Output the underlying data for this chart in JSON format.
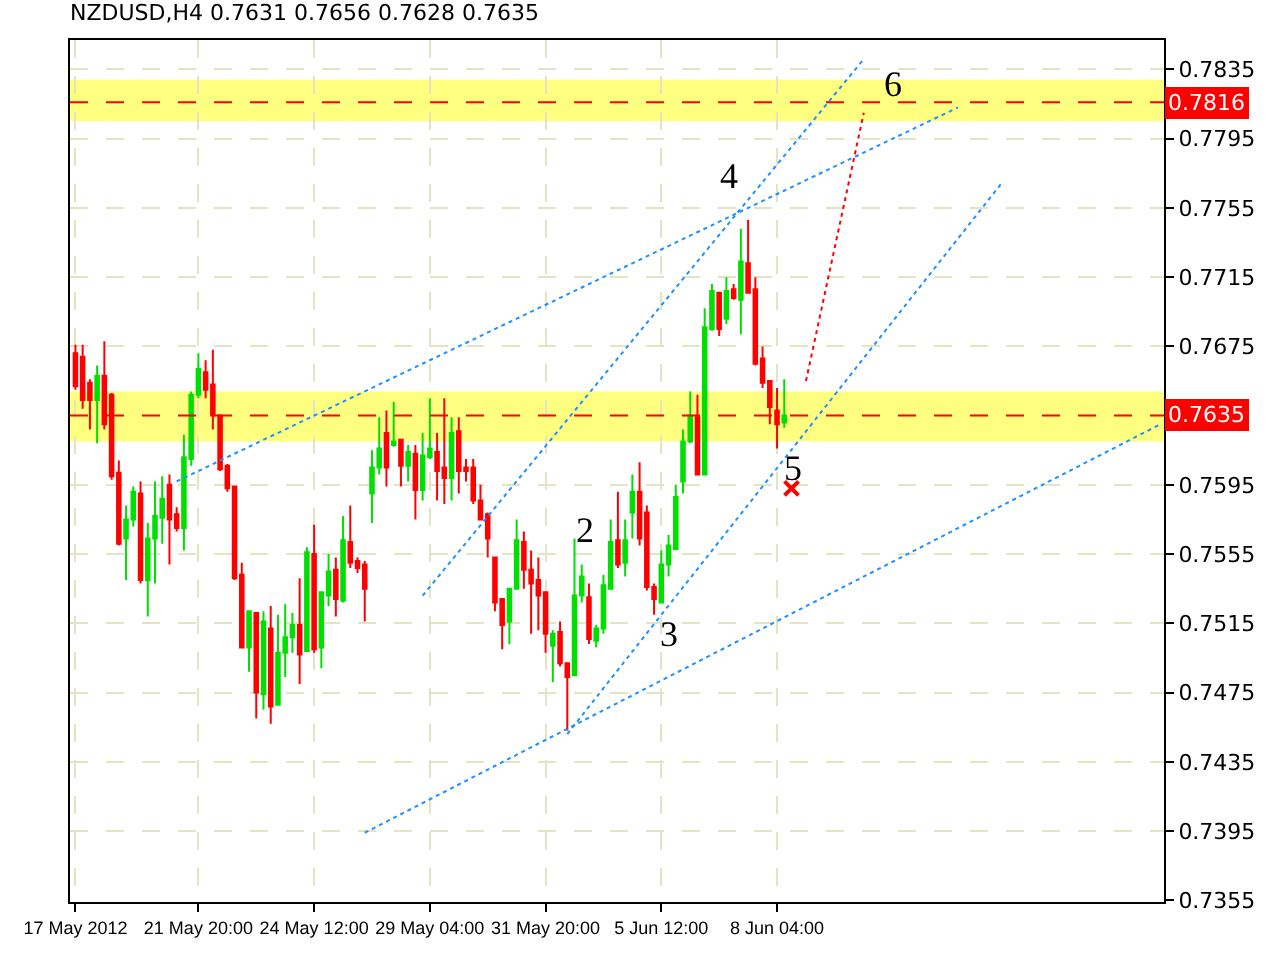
{
  "chart_data": {
    "type": "candlestick",
    "title": "NZDUSD,H4 0.7631 0.7656 0.7628 0.7635",
    "categories": [
      "17 May 2012",
      null,
      null,
      null,
      null,
      null,
      null,
      null,
      null,
      null,
      null,
      null,
      null,
      null,
      null,
      null,
      null,
      "21 May 20:00",
      null,
      null,
      null,
      null,
      null,
      null,
      null,
      null,
      null,
      null,
      null,
      null,
      null,
      null,
      null,
      "24 May 12:00",
      null,
      null,
      null,
      null,
      null,
      null,
      null,
      null,
      null,
      null,
      null,
      null,
      null,
      null,
      null,
      "29 May 04:00",
      null,
      null,
      null,
      null,
      null,
      null,
      null,
      null,
      null,
      null,
      null,
      null,
      null,
      null,
      null,
      "31 May 20:00",
      null,
      null,
      null,
      null,
      null,
      null,
      null,
      null,
      null,
      null,
      null,
      null,
      null,
      null,
      null,
      "5 Jun 12:00",
      null,
      null,
      null,
      null,
      null,
      null,
      null,
      null,
      null,
      null,
      null,
      null,
      null,
      null,
      null,
      "8 Jun 04:00",
      null,
      null,
      null,
      null,
      null,
      null,
      null,
      null,
      null,
      null,
      null,
      null,
      null,
      null,
      null,
      null,
      null,
      null,
      null,
      null,
      null,
      null,
      null,
      null,
      null,
      null,
      null,
      null,
      null,
      null,
      null,
      null,
      null,
      null,
      null,
      null,
      null,
      null,
      null,
      null,
      null,
      null,
      null,
      null,
      null,
      null,
      null,
      null,
      null,
      null,
      null,
      null,
      null
    ],
    "ohlc": [
      [
        0.7671,
        0.7676,
        0.765,
        0.7652
      ],
      [
        0.7669,
        0.7676,
        0.7639,
        0.7644
      ],
      [
        0.7654,
        0.7656,
        0.7627,
        0.7644
      ],
      [
        0.7644,
        0.7664,
        0.7619,
        0.7658
      ],
      [
        0.7658,
        0.7678,
        0.7627,
        0.763
      ],
      [
        0.7647,
        0.7648,
        0.7598,
        0.76
      ],
      [
        0.7602,
        0.7609,
        0.756,
        0.7561
      ],
      [
        0.7564,
        0.7583,
        0.754,
        0.7575
      ],
      [
        0.7575,
        0.7594,
        0.7571,
        0.7591
      ],
      [
        0.759,
        0.7597,
        0.7538,
        0.754
      ],
      [
        0.754,
        0.7573,
        0.7519,
        0.7564
      ],
      [
        0.7564,
        0.7597,
        0.7538,
        0.7577
      ],
      [
        0.7576,
        0.76,
        0.7561,
        0.7587
      ],
      [
        0.7595,
        0.7601,
        0.7549,
        0.7575
      ],
      [
        0.7578,
        0.7582,
        0.7568,
        0.757
      ],
      [
        0.757,
        0.7624,
        0.7557,
        0.7611
      ],
      [
        0.761,
        0.7649,
        0.7606,
        0.7647
      ],
      [
        0.7647,
        0.7671,
        0.7645,
        0.7662
      ],
      [
        0.766,
        0.7667,
        0.7645,
        0.765
      ],
      [
        0.7653,
        0.7673,
        0.7627,
        0.7635
      ],
      [
        0.7635,
        0.7635,
        0.7603,
        0.7604
      ],
      [
        0.7606,
        0.7607,
        0.7591,
        0.7593
      ],
      [
        0.7594,
        0.7594,
        0.754,
        0.7541
      ],
      [
        0.7543,
        0.755,
        0.7501,
        0.7501
      ],
      [
        0.7501,
        0.7522,
        0.7487,
        0.7522
      ],
      [
        0.7521,
        0.7521,
        0.746,
        0.7475
      ],
      [
        0.7474,
        0.7522,
        0.7465,
        0.7516
      ],
      [
        0.7512,
        0.7525,
        0.7457,
        0.7467
      ],
      [
        0.7468,
        0.752,
        0.7468,
        0.7498
      ],
      [
        0.7498,
        0.7526,
        0.7484,
        0.7507
      ],
      [
        0.7507,
        0.7521,
        0.7498,
        0.7514
      ],
      [
        0.7514,
        0.7541,
        0.748,
        0.7497
      ],
      [
        0.7499,
        0.7559,
        0.7499,
        0.7556
      ],
      [
        0.7555,
        0.7572,
        0.7498,
        0.75
      ],
      [
        0.7501,
        0.7533,
        0.7489,
        0.7533
      ],
      [
        0.7531,
        0.7555,
        0.7525,
        0.7545
      ],
      [
        0.7546,
        0.7553,
        0.7519,
        0.7529
      ],
      [
        0.7528,
        0.7577,
        0.7527,
        0.7563
      ],
      [
        0.7562,
        0.7583,
        0.7547,
        0.755
      ],
      [
        0.7551,
        0.7553,
        0.7544,
        0.7547
      ],
      [
        0.7549,
        0.7551,
        0.7516,
        0.7535
      ],
      [
        0.759,
        0.7615,
        0.7573,
        0.7605
      ],
      [
        0.7605,
        0.7634,
        0.7601,
        0.7616
      ],
      [
        0.7625,
        0.7638,
        0.7594,
        0.7605
      ],
      [
        0.7618,
        0.7643,
        0.7617,
        0.762
      ],
      [
        0.7621,
        0.7621,
        0.7594,
        0.7606
      ],
      [
        0.7606,
        0.7618,
        0.7597,
        0.7614
      ],
      [
        0.7613,
        0.7618,
        0.7575,
        0.7592
      ],
      [
        0.7592,
        0.7625,
        0.7586,
        0.7612
      ],
      [
        0.7611,
        0.7645,
        0.761,
        0.7616
      ],
      [
        0.7614,
        0.7625,
        0.7586,
        0.7603
      ],
      [
        0.7605,
        0.7645,
        0.7584,
        0.7599
      ],
      [
        0.7599,
        0.7634,
        0.7586,
        0.7625
      ],
      [
        0.7626,
        0.7634,
        0.759,
        0.7603
      ],
      [
        0.7605,
        0.761,
        0.7597,
        0.7603
      ],
      [
        0.7605,
        0.761,
        0.7584,
        0.7586
      ],
      [
        0.7586,
        0.7595,
        0.7575,
        0.7575
      ],
      [
        0.7578,
        0.7579,
        0.7553,
        0.7564
      ],
      [
        0.7553,
        0.7553,
        0.7522,
        0.7527
      ],
      [
        0.7529,
        0.7529,
        0.75,
        0.7514
      ],
      [
        0.7516,
        0.7535,
        0.7503,
        0.7535
      ],
      [
        0.7535,
        0.7575,
        0.7535,
        0.7563
      ],
      [
        0.7562,
        0.7568,
        0.7535,
        0.7546
      ],
      [
        0.7546,
        0.7557,
        0.7509,
        0.7538
      ],
      [
        0.754,
        0.7553,
        0.7511,
        0.7531
      ],
      [
        0.7533,
        0.7533,
        0.7498,
        0.7509
      ],
      [
        0.7502,
        0.7511,
        0.7481,
        0.7509
      ],
      [
        0.751,
        0.7516,
        0.749,
        0.7492
      ],
      [
        0.7492,
        0.7492,
        0.7453,
        0.7484
      ],
      [
        0.7485,
        0.7564,
        0.7485,
        0.7531
      ],
      [
        0.7531,
        0.7549,
        0.7527,
        0.7542
      ],
      [
        0.753,
        0.7538,
        0.7503,
        0.7506
      ],
      [
        0.7505,
        0.7514,
        0.7501,
        0.7512
      ],
      [
        0.7512,
        0.7543,
        0.7509,
        0.7537
      ],
      [
        0.7535,
        0.7575,
        0.7535,
        0.7562
      ],
      [
        0.7563,
        0.7591,
        0.7547,
        0.7549
      ],
      [
        0.755,
        0.7575,
        0.7542,
        0.7563
      ],
      [
        0.7579,
        0.7601,
        0.7564,
        0.7591
      ],
      [
        0.7591,
        0.7608,
        0.756,
        0.7564
      ],
      [
        0.7579,
        0.7583,
        0.7534,
        0.7536
      ],
      [
        0.7536,
        0.7538,
        0.752,
        0.7529
      ],
      [
        0.7527,
        0.7557,
        0.7527,
        0.7549
      ],
      [
        0.7549,
        0.7566,
        0.7542,
        0.756
      ],
      [
        0.7558,
        0.7595,
        0.7558,
        0.7588
      ],
      [
        0.7597,
        0.7627,
        0.759,
        0.762
      ],
      [
        0.762,
        0.7649,
        0.7619,
        0.7635
      ],
      [
        0.7634,
        0.7647,
        0.7601,
        0.7601
      ],
      [
        0.7601,
        0.7697,
        0.7601,
        0.7686
      ],
      [
        0.7685,
        0.7711,
        0.7684,
        0.7707
      ],
      [
        0.7706,
        0.7706,
        0.7681,
        0.7685
      ],
      [
        0.7691,
        0.7715,
        0.7688,
        0.7707
      ],
      [
        0.7708,
        0.7711,
        0.7702,
        0.7703
      ],
      [
        0.7702,
        0.7743,
        0.7682,
        0.7724
      ],
      [
        0.7723,
        0.7748,
        0.7706,
        0.7706
      ],
      [
        0.7708,
        0.7715,
        0.7664,
        0.7665
      ],
      [
        0.7668,
        0.7675,
        0.7651,
        0.7654
      ],
      [
        0.7655,
        0.7655,
        0.763,
        0.764
      ],
      [
        0.7638,
        0.7651,
        0.7616,
        0.763
      ],
      [
        0.7631,
        0.7656,
        0.7628,
        0.7635
      ],
      null,
      null,
      null,
      null,
      null,
      null,
      null,
      null,
      null,
      null,
      null,
      null,
      null,
      null,
      null,
      null,
      null,
      null,
      null,
      null,
      null,
      null,
      null,
      null,
      null,
      null,
      null,
      null,
      null,
      null,
      null,
      null,
      null,
      null,
      null,
      null,
      null,
      null,
      null,
      null,
      null,
      null,
      null,
      null,
      null,
      null,
      null,
      null,
      null,
      null,
      null,
      null
    ],
    "colors": [
      "#ff0000",
      "#ff0000",
      "#ff0000",
      "#00e000",
      "#ff0000",
      "#ff0000",
      "#ff0000",
      "#00e000",
      "#00e000",
      "#ff0000",
      "#00e000",
      "#00e000",
      "#00e000",
      "#ff0000",
      "#ff0000",
      "#00e000",
      "#00e000",
      "#00e000",
      "#ff0000",
      "#ff0000",
      "#ff0000",
      "#ff0000",
      "#ff0000",
      "#ff0000",
      "#00e000",
      "#ff0000",
      "#00e000",
      "#ff0000",
      "#00e000",
      "#00e000",
      "#00e000",
      "#ff0000",
      "#00e000",
      "#ff0000",
      "#00e000",
      "#00e000",
      "#ff0000",
      "#00e000",
      "#ff0000",
      "#ff0000",
      "#ff0000",
      "#00e000",
      "#00e000",
      "#ff0000",
      "#00e000",
      "#ff0000",
      "#00e000",
      "#ff0000",
      "#00e000",
      "#00e000",
      "#ff0000",
      "#ff0000",
      "#00e000",
      "#ff0000",
      "#ff0000",
      "#ff0000",
      "#ff0000",
      "#ff0000",
      "#ff0000",
      "#ff0000",
      "#00e000",
      "#00e000",
      "#ff0000",
      "#ff0000",
      "#ff0000",
      "#ff0000",
      "#00e000",
      "#ff0000",
      "#ff0000",
      "#00e000",
      "#00e000",
      "#ff0000",
      "#00e000",
      "#00e000",
      "#00e000",
      "#ff0000",
      "#00e000",
      "#00e000",
      "#ff0000",
      "#ff0000",
      "#ff0000",
      "#00e000",
      "#00e000",
      "#00e000",
      "#00e000",
      "#00e000",
      "#ff0000",
      "#00e000",
      "#00e000",
      "#ff0000",
      "#00e000",
      "#ff0000",
      "#00e000",
      "#ff0000",
      "#ff0000",
      "#ff0000",
      "#ff0000",
      "#ff0000",
      "#00e000",
      null,
      null,
      null,
      null,
      null,
      null,
      null,
      null,
      null,
      null,
      null,
      null,
      null,
      null,
      null,
      null,
      null,
      null,
      null,
      null,
      null,
      null,
      null,
      null,
      null,
      null,
      null,
      null,
      null,
      null,
      null,
      null,
      null,
      null,
      null,
      null,
      null,
      null,
      null,
      null,
      null,
      null,
      null,
      null,
      null,
      null,
      null,
      null,
      null,
      null,
      null,
      null
    ],
    "series": [
      {
        "type": "line",
        "color": "#1e90ff",
        "line_style": "dotted",
        "values": [
          null,
          null,
          null,
          null,
          null,
          null,
          null,
          null,
          null,
          null,
          null,
          null,
          null,
          null,
          null,
          null,
          null,
          null,
          null,
          null,
          null,
          null,
          null,
          null,
          null,
          null,
          null,
          null,
          null,
          null,
          null,
          null,
          null,
          null,
          null,
          null,
          null,
          null,
          null,
          null,
          0.7394,
          null,
          null,
          null,
          null,
          null,
          null,
          null,
          null,
          null,
          null,
          null,
          null,
          null,
          null,
          null,
          null,
          null,
          null,
          null,
          null,
          null,
          null,
          null,
          null,
          null,
          null,
          null,
          null,
          null,
          null,
          null,
          null,
          null,
          null,
          null,
          null,
          null,
          null,
          null,
          null,
          null,
          null,
          null,
          null,
          null,
          null,
          null,
          null,
          null,
          null,
          null,
          null,
          null,
          null,
          null,
          null,
          null,
          null,
          null,
          null,
          null,
          null,
          null,
          null,
          null,
          null,
          null,
          null,
          null,
          null,
          null,
          null,
          null,
          null,
          null,
          null,
          null,
          null,
          null,
          null,
          null,
          null,
          null,
          null,
          null,
          null,
          null,
          null,
          null,
          null,
          null,
          null,
          null,
          null,
          null,
          null,
          null,
          null,
          null,
          null,
          null,
          null,
          null,
          null,
          null,
          null,
          null,
          null,
          null,
          0.763
        ]
      },
      {
        "type": "line",
        "color": "#1e90ff",
        "line_style": "dotted",
        "values": [
          null,
          null,
          null,
          null,
          null,
          null,
          null,
          null,
          null,
          null,
          null,
          null,
          null,
          null,
          null,
          null,
          null,
          null,
          null,
          null,
          null,
          null,
          null,
          null,
          null,
          null,
          null,
          null,
          null,
          null,
          null,
          null,
          null,
          null,
          null,
          null,
          null,
          null,
          null,
          null,
          null,
          null,
          null,
          null,
          null,
          null,
          null,
          null,
          null,
          null,
          null,
          null,
          null,
          null,
          null,
          null,
          null,
          null,
          null,
          null,
          null,
          null,
          null,
          null,
          null,
          null,
          null,
          null,
          0.7451,
          null,
          null,
          null,
          null,
          null,
          null,
          null,
          null,
          null,
          null,
          null,
          null,
          null,
          null,
          null,
          null,
          null,
          null,
          null,
          null,
          null,
          null,
          null,
          null,
          null,
          null,
          null,
          null,
          null,
          null,
          null,
          null,
          null,
          null,
          null,
          null,
          null,
          null,
          null,
          null,
          null,
          null,
          null,
          null,
          null,
          null,
          null,
          null,
          null,
          null,
          null,
          null,
          null,
          null,
          null,
          null,
          null,
          null,
          null,
          0.7769,
          null,
          null,
          null,
          null,
          null,
          null,
          null,
          null,
          null,
          null,
          null,
          null,
          null,
          null,
          null,
          null,
          null,
          null,
          null,
          null,
          null,
          null
        ]
      },
      {
        "type": "line",
        "color": "#1e90ff",
        "line_style": "dotted",
        "values": [
          null,
          null,
          null,
          null,
          null,
          null,
          null,
          null,
          null,
          null,
          null,
          null,
          null,
          null,
          null,
          null,
          null,
          null,
          null,
          null,
          null,
          null,
          null,
          null,
          null,
          null,
          null,
          null,
          null,
          null,
          null,
          null,
          null,
          null,
          null,
          null,
          null,
          null,
          null,
          null,
          null,
          null,
          null,
          null,
          null,
          null,
          null,
          null,
          0.7531,
          null,
          null,
          null,
          null,
          null,
          null,
          null,
          null,
          null,
          null,
          null,
          null,
          null,
          null,
          null,
          null,
          null,
          null,
          null,
          null,
          null,
          null,
          null,
          null,
          null,
          null,
          null,
          null,
          null,
          null,
          null,
          null,
          null,
          null,
          null,
          null,
          null,
          null,
          null,
          null,
          null,
          null,
          null,
          null,
          null,
          null,
          null,
          null,
          null,
          null,
          null,
          null,
          null,
          null,
          null,
          null,
          null,
          null,
          null,
          null,
          0.7841,
          null,
          null,
          null,
          null,
          null,
          null,
          null,
          null,
          null,
          null,
          null,
          null,
          null,
          null,
          null,
          null,
          null,
          null,
          null,
          null,
          null,
          null,
          null,
          null,
          null,
          null,
          null,
          null,
          null,
          null,
          null,
          null,
          null,
          null,
          null,
          null,
          null,
          null,
          null,
          null,
          null
        ]
      },
      {
        "type": "line",
        "color": "#1e90ff",
        "line_style": "dotted",
        "values": [
          null,
          null,
          null,
          null,
          null,
          null,
          null,
          null,
          null,
          null,
          null,
          null,
          null,
          null,
          0.7597,
          null,
          null,
          null,
          null,
          null,
          null,
          null,
          null,
          null,
          null,
          null,
          null,
          null,
          null,
          null,
          null,
          null,
          null,
          null,
          null,
          null,
          null,
          null,
          null,
          null,
          null,
          null,
          null,
          null,
          null,
          null,
          null,
          null,
          null,
          null,
          null,
          null,
          null,
          null,
          null,
          null,
          null,
          null,
          null,
          null,
          null,
          null,
          null,
          null,
          null,
          null,
          null,
          null,
          null,
          null,
          null,
          null,
          null,
          null,
          null,
          null,
          null,
          null,
          null,
          null,
          null,
          null,
          null,
          null,
          null,
          null,
          null,
          null,
          null,
          null,
          null,
          null,
          null,
          null,
          null,
          null,
          null,
          null,
          null,
          null,
          null,
          null,
          null,
          null,
          null,
          null,
          null,
          null,
          null,
          null,
          null,
          null,
          null,
          null,
          null,
          null,
          null,
          null,
          null,
          null,
          null,
          null,
          0.7813,
          null,
          null,
          null,
          null,
          null,
          null,
          null,
          null,
          null,
          null,
          null,
          null,
          null,
          null,
          null,
          null,
          null,
          null,
          null,
          null,
          null,
          null,
          null,
          null,
          null,
          null,
          null,
          null
        ]
      },
      {
        "type": "line",
        "color": "#ff0000",
        "line_style": "dotted",
        "values": [
          null,
          null,
          null,
          null,
          null,
          null,
          null,
          null,
          null,
          null,
          null,
          null,
          null,
          null,
          null,
          null,
          null,
          null,
          null,
          null,
          null,
          null,
          null,
          null,
          null,
          null,
          null,
          null,
          null,
          null,
          null,
          null,
          null,
          null,
          null,
          null,
          null,
          null,
          null,
          null,
          null,
          null,
          null,
          null,
          null,
          null,
          null,
          null,
          null,
          null,
          null,
          null,
          null,
          null,
          null,
          null,
          null,
          null,
          null,
          null,
          null,
          null,
          null,
          null,
          null,
          null,
          null,
          null,
          null,
          null,
          null,
          null,
          null,
          null,
          null,
          null,
          null,
          null,
          null,
          null,
          null,
          null,
          null,
          null,
          null,
          null,
          null,
          null,
          null,
          null,
          null,
          null,
          null,
          null,
          null,
          null,
          null,
          null,
          null,
          null,
          null,
          0.7655,
          null,
          null,
          null,
          null,
          null,
          null,
          null,
          0.781,
          null,
          null,
          null,
          null,
          null,
          null,
          null,
          null,
          null,
          null,
          null,
          null,
          null,
          null,
          null,
          null,
          null,
          null,
          null,
          null,
          null,
          null,
          null,
          null,
          null,
          null,
          null,
          null,
          null,
          null,
          null,
          null,
          null,
          null,
          null,
          null,
          null,
          null,
          null,
          null,
          null
        ]
      },
      {
        "type": "scatter",
        "color": "#ff0000",
        "marker": "cross",
        "values": [
          null,
          null,
          null,
          null,
          null,
          null,
          null,
          null,
          null,
          null,
          null,
          null,
          null,
          null,
          null,
          null,
          null,
          null,
          null,
          null,
          null,
          null,
          null,
          null,
          null,
          null,
          null,
          null,
          null,
          null,
          null,
          null,
          null,
          null,
          null,
          null,
          null,
          null,
          null,
          null,
          null,
          null,
          null,
          null,
          null,
          null,
          null,
          null,
          null,
          null,
          null,
          null,
          null,
          null,
          null,
          null,
          null,
          null,
          null,
          null,
          null,
          null,
          null,
          null,
          null,
          null,
          null,
          null,
          null,
          null,
          null,
          null,
          null,
          null,
          null,
          null,
          null,
          null,
          null,
          null,
          null,
          null,
          null,
          null,
          null,
          null,
          null,
          null,
          null,
          null,
          null,
          null,
          null,
          null,
          null,
          null,
          null,
          null,
          null,
          0.7593,
          null,
          null,
          null,
          null,
          null,
          null,
          null,
          null,
          null,
          null,
          null,
          null,
          null,
          null,
          null,
          null,
          null,
          null,
          null,
          null,
          null,
          null,
          null,
          null,
          null,
          null,
          null,
          null,
          null,
          null,
          null,
          null,
          null,
          null,
          null,
          null,
          null,
          null,
          null,
          null,
          null,
          null,
          null,
          null,
          null,
          null,
          null,
          null,
          null,
          null,
          null
        ]
      }
    ],
    "annotations": [
      {
        "text": "2",
        "y": 0.7543
      },
      {
        "text": "3",
        "y": 0.752
      },
      {
        "text": "4",
        "y": 0.7748
      },
      {
        "text": "5",
        "y": 0.7616
      },
      {
        "text": "6",
        "y": 0.781
      }
    ],
    "bands": [
      {
        "axis": "y",
        "from": 0.7805,
        "to": 0.7829,
        "color": "#ffff80"
      },
      {
        "axis": "y",
        "from": 0.762,
        "to": 0.7649,
        "color": "#ffff80"
      }
    ],
    "ref_lines": [
      {
        "axis": "y",
        "value": 0.7816,
        "label": "0.7816",
        "color": "#ff0000",
        "line_style": "dashed"
      },
      {
        "axis": "y",
        "value": 0.7635,
        "label": "0.7635",
        "color": "#ff0000",
        "line_style": "dashed"
      }
    ],
    "ylim": [
      0.7354,
      0.7852
    ],
    "yticks": [
      0.7835,
      0.7795,
      0.7755,
      0.7715,
      0.7675,
      0.7595,
      0.7555,
      0.7515,
      0.7475,
      0.7435,
      0.7395,
      0.7355
    ],
    "grid": true
  }
}
